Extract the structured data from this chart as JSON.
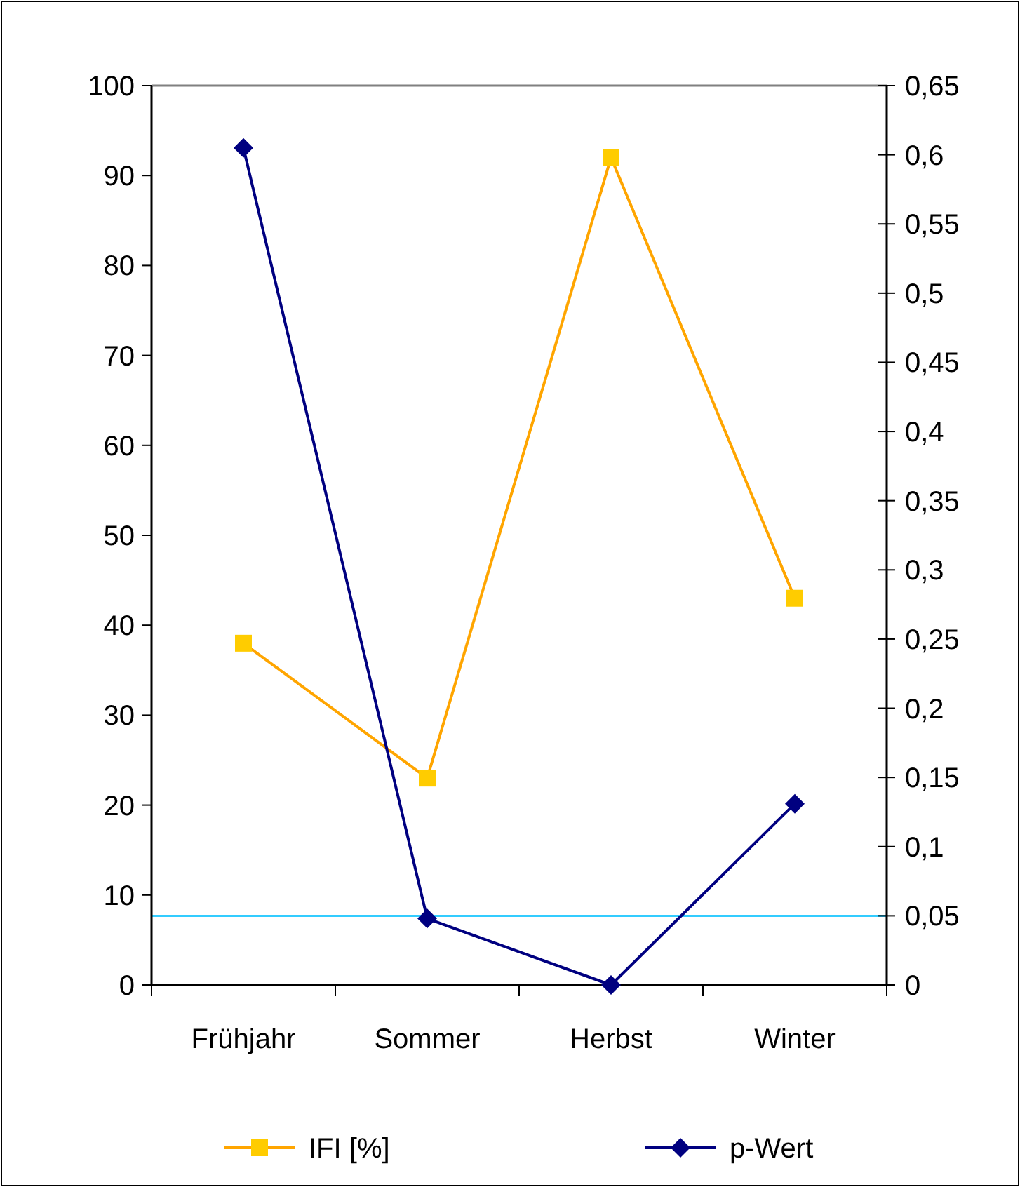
{
  "chart_data": {
    "type": "line",
    "categories": [
      "Frühjahr",
      "Sommer",
      "Herbst",
      "Winter"
    ],
    "series": [
      {
        "name": "IFI [%]",
        "color": "#ffa500",
        "marker": "square",
        "values": [
          38,
          23,
          92,
          43
        ]
      },
      {
        "name": "p-Wert",
        "color": "#000080",
        "marker": "diamond",
        "axis": "y2",
        "values": [
          0.605,
          0.048,
          0,
          0.131
        ]
      }
    ],
    "ylim": [
      0,
      100
    ],
    "yticks": [
      0,
      10,
      20,
      30,
      40,
      50,
      60,
      70,
      80,
      90,
      100
    ],
    "y2lim": [
      0,
      0.65
    ],
    "y2ticks": [
      0,
      {
        "value": 0.05,
        "label": "0,05"
      },
      {
        "value": 0.1,
        "label": "0,1"
      },
      {
        "value": 0.15,
        "label": "0,15"
      },
      {
        "value": 0.2,
        "label": "0,2"
      },
      {
        "value": 0.25,
        "label": "0,25"
      },
      {
        "value": 0.3,
        "label": "0,3"
      },
      {
        "value": 0.35,
        "label": "0,35"
      },
      {
        "value": 0.4,
        "label": "0,4"
      },
      {
        "value": 0.45,
        "label": "0,45"
      },
      {
        "value": 0.5,
        "label": "0,5"
      },
      {
        "value": 0.55,
        "label": "0,55"
      },
      {
        "value": 0.6,
        "label": "0,6"
      },
      {
        "value": 0.65,
        "label": "0,65"
      }
    ],
    "ref_lines": [
      {
        "axis": "y2",
        "value": 0.05,
        "color": "#33ccff"
      }
    ],
    "legend": "bottom"
  }
}
